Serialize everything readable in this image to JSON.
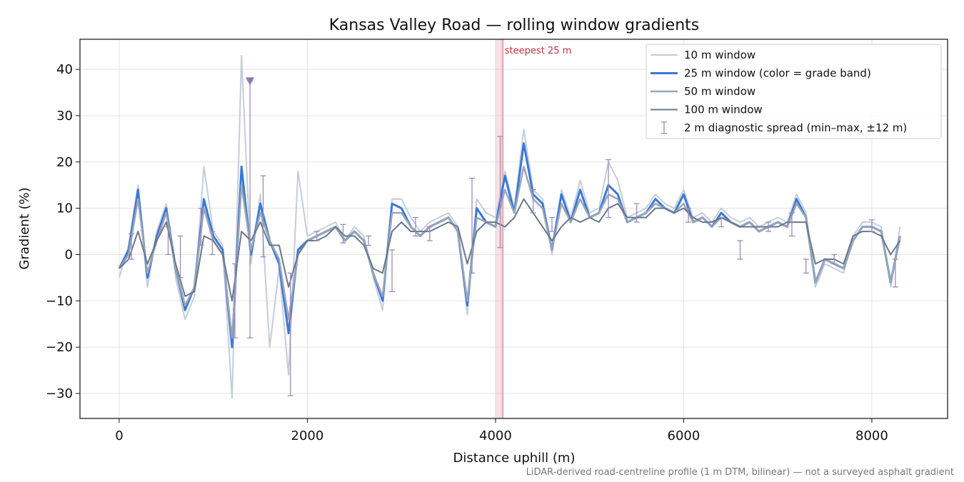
{
  "chart_data": {
    "type": "line",
    "title": "Kansas Valley Road — rolling window gradients",
    "x_label": "Distance uphill (m)",
    "y_label": "Gradient (%)",
    "footnote": "LiDAR-derived road-centreline profile (1 m DTM, bilinear) — not a surveyed asphalt gradient",
    "xlim": [
      -417,
      8805
    ],
    "ylim": [
      -35.4,
      46.5
    ],
    "xticks": [
      0,
      2000,
      4000,
      6000,
      8000
    ],
    "yticks": [
      {
        "value": -30,
        "label": "−30"
      },
      {
        "value": -20,
        "label": "−20"
      },
      {
        "value": -10,
        "label": "−10"
      },
      0,
      10,
      20,
      30,
      40
    ],
    "grid": true,
    "legend": "upper right",
    "x": [
      0,
      100,
      200,
      300,
      400,
      500,
      600,
      700,
      800,
      900,
      1000,
      1100,
      1200,
      1300,
      1400,
      1500,
      1600,
      1700,
      1800,
      1900,
      2000,
      2100,
      2200,
      2300,
      2400,
      2500,
      2600,
      2700,
      2800,
      2900,
      3000,
      3100,
      3200,
      3300,
      3400,
      3500,
      3600,
      3700,
      3800,
      3900,
      4000,
      4100,
      4200,
      4300,
      4400,
      4500,
      4600,
      4700,
      4800,
      4900,
      5000,
      5100,
      5200,
      5300,
      5400,
      5500,
      5600,
      5700,
      5800,
      5900,
      6000,
      6100,
      6200,
      6300,
      6400,
      6500,
      6600,
      6700,
      6800,
      6900,
      7000,
      7100,
      7200,
      7300,
      7400,
      7500,
      7600,
      7700,
      7800,
      7900,
      8000,
      8100,
      8200,
      8300
    ],
    "series": [
      {
        "name": "10 m window",
        "color": "#c5cdd9",
        "width": 2,
        "values": [
          -5,
          2,
          15,
          -7,
          5,
          11,
          -5,
          -14,
          -9,
          19,
          5,
          2,
          -31,
          43,
          -2,
          13,
          -20,
          -3,
          -26,
          18,
          4,
          5,
          6,
          7,
          3,
          6,
          4,
          -5,
          -12,
          12,
          12,
          8,
          5,
          7,
          8,
          9,
          6,
          -13,
          12,
          9,
          8,
          18,
          10,
          27,
          14,
          12,
          0,
          14,
          8,
          16,
          9,
          10,
          20,
          16,
          8,
          9,
          10,
          13,
          11,
          10,
          14,
          8,
          9,
          7,
          10,
          8,
          7,
          8,
          6,
          7,
          8,
          7,
          13,
          9,
          -7,
          -2,
          -3,
          -4,
          4,
          7,
          7,
          6,
          -7,
          6
        ]
      },
      {
        "name": "25 m window (color = grade band)",
        "color": "#3a78d8",
        "width": 3,
        "values": [
          -3,
          1,
          14,
          -5,
          4,
          10,
          -3,
          -12,
          -7,
          12,
          4,
          1,
          -20,
          19,
          0,
          11,
          3,
          -2,
          -17,
          1,
          3,
          4,
          5,
          6,
          3,
          5,
          3,
          -4,
          -10,
          11,
          10,
          6,
          4,
          6,
          7,
          8,
          5,
          -11,
          10,
          7,
          6,
          17,
          9,
          24,
          13,
          11,
          1,
          13,
          7,
          14,
          8,
          9,
          15,
          13,
          7,
          8,
          9,
          12,
          10,
          9,
          13,
          7,
          8,
          6,
          9,
          7,
          6,
          7,
          5,
          6,
          7,
          6,
          12,
          8,
          -6,
          -1,
          -2,
          -3,
          3,
          6,
          6,
          5,
          -6,
          4
        ]
      },
      {
        "name": "50 m window",
        "color": "#9aa6b6",
        "width": 2.5,
        "values": [
          -3,
          0,
          12,
          -4,
          3,
          9,
          -3,
          -11,
          -7,
          10,
          3,
          0,
          -18,
          15,
          1,
          9,
          3,
          -1,
          -14,
          0,
          3,
          4,
          5,
          6,
          3,
          5,
          3,
          -4,
          -9,
          9,
          9,
          6,
          4,
          6,
          7,
          8,
          5,
          -10,
          8,
          7,
          6,
          14,
          9,
          19,
          12,
          10,
          1,
          11,
          7,
          12,
          8,
          9,
          13,
          12,
          7,
          8,
          9,
          11,
          10,
          9,
          11,
          7,
          8,
          6,
          8,
          7,
          6,
          7,
          5,
          6,
          7,
          6,
          11,
          8,
          -6,
          -1,
          -2,
          -3,
          3,
          6,
          6,
          5,
          -6,
          4
        ]
      },
      {
        "name": "100 m window",
        "color": "#6b7889",
        "width": 2,
        "values": [
          -3,
          -1,
          5,
          -2,
          3,
          7,
          -2,
          -9,
          -8,
          4,
          3,
          0,
          -10,
          5,
          3,
          7,
          2,
          2,
          -7,
          0,
          3,
          3,
          4,
          6,
          4,
          4,
          2,
          -3,
          -4,
          5,
          7,
          5,
          5,
          5,
          6,
          7,
          6,
          -2,
          5,
          7,
          7,
          6,
          8,
          12,
          9,
          6,
          3,
          6,
          8,
          7,
          8,
          7,
          10,
          11,
          8,
          8,
          8,
          10,
          10,
          9,
          10,
          8,
          7,
          7,
          8,
          7,
          6,
          6,
          6,
          6,
          6,
          7,
          7,
          7,
          -2,
          -1,
          -1,
          -2,
          4,
          5,
          5,
          4,
          0,
          3
        ]
      }
    ],
    "spread": {
      "name": "2 m diagnostic spread (min–max, ±12 m)",
      "color": "#9c8cba",
      "x": [
        130,
        520,
        650,
        870,
        990,
        1230,
        1390,
        1530,
        1820,
        2100,
        2380,
        2650,
        2900,
        3150,
        3300,
        3750,
        4050,
        4400,
        4600,
        5200,
        5500,
        6050,
        6400,
        6600,
        6900,
        7150,
        7300,
        7600,
        8000,
        8250
      ],
      "low": [
        -1,
        0,
        -5,
        2,
        0,
        -18,
        -18,
        -0.5,
        -30.5,
        3,
        2.5,
        2,
        -8,
        4,
        3,
        -4,
        1.5,
        9,
        5,
        8,
        7,
        7,
        6,
        -1,
        5,
        4,
        -4,
        -2,
        5,
        -7
      ],
      "high": [
        4.5,
        6,
        4,
        10,
        5,
        -2,
        37.5,
        17,
        -4,
        5,
        6.5,
        4,
        1,
        8,
        6,
        16.5,
        25.5,
        14,
        8,
        20.5,
        11,
        10,
        8,
        3,
        7,
        9,
        -1,
        0,
        7.5,
        -1
      ]
    },
    "clipped_marker": {
      "x": 1390,
      "y": 37.5
    },
    "highlight": {
      "x": 4075,
      "band": [
        4000,
        4090
      ],
      "label": "steepest 25 m",
      "color": "#e8a0a8"
    }
  }
}
